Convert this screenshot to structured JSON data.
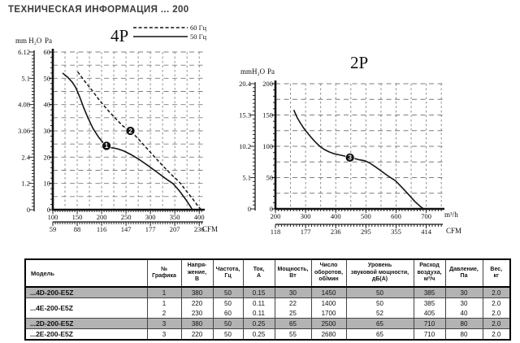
{
  "page": {
    "title": "ТЕХНИЧЕСКАЯ ИНФОРМАЦИЯ ... 200"
  },
  "colors": {
    "accent": "#111111",
    "grid": "#7d7d7d",
    "row_shade": "#b3b3b3"
  },
  "chart_data": [
    {
      "id": "c1",
      "type": "line",
      "title": "4P",
      "y_left_unit": "mm H₂O",
      "y_right_unit": "Pa",
      "cfm_unit": "CFM",
      "flow_unit": "",
      "x_range": [
        100,
        408
      ],
      "y_range": [
        0,
        60
      ],
      "x_ticks": [
        100,
        150,
        200,
        250,
        300,
        350,
        400
      ],
      "y_ticks": [
        0,
        10,
        20,
        30,
        40,
        50,
        60
      ],
      "mm_labels": [
        "6.12",
        "5.1",
        "4.08",
        "3.06",
        "2.4",
        "1.2",
        "0"
      ],
      "cfm_labels": [
        "59",
        "88",
        "116",
        "147",
        "177",
        "207",
        "236"
      ],
      "grid": {
        "x_start": 125,
        "x_end": 400,
        "x_step": 25,
        "y_start": 5,
        "y_end": 60,
        "y_step": 5
      },
      "legend": [
        {
          "label": "60 Гц",
          "style": "dashed"
        },
        {
          "label": "50 Гц",
          "style": "solid"
        }
      ],
      "series": [
        {
          "name": "50 Гц",
          "style": "solid",
          "points": [
            [
              120,
              52
            ],
            [
              130,
              50.5
            ],
            [
              140,
              48.5
            ],
            [
              147,
              46.5
            ],
            [
              155,
              43
            ],
            [
              163,
              39
            ],
            [
              172,
              35
            ],
            [
              182,
              31
            ],
            [
              193,
              27.8
            ],
            [
              203,
              25.5
            ],
            [
              210,
              24.3
            ],
            [
              220,
              23.6
            ],
            [
              232,
              23.2
            ],
            [
              245,
              22.4
            ],
            [
              260,
              21
            ],
            [
              278,
              19
            ],
            [
              295,
              16.8
            ],
            [
              312,
              14.5
            ],
            [
              330,
              12
            ],
            [
              347,
              9.8
            ],
            [
              360,
              7
            ],
            [
              372,
              4
            ],
            [
              381,
              1.5
            ],
            [
              386,
              0
            ]
          ]
        },
        {
          "name": "60 Гц",
          "style": "dashed",
          "points": [
            [
              151,
              52.5
            ],
            [
              165,
              49
            ],
            [
              180,
              45.5
            ],
            [
              196,
              41.5
            ],
            [
              212,
              38
            ],
            [
              228,
              34.8
            ],
            [
              244,
              31.8
            ],
            [
              259,
              30
            ],
            [
              275,
              27
            ],
            [
              292,
              23.5
            ],
            [
              308,
              20.2
            ],
            [
              325,
              16.8
            ],
            [
              342,
              13.5
            ],
            [
              358,
              10.8
            ],
            [
              372,
              7.5
            ],
            [
              385,
              4.5
            ],
            [
              397,
              1.5
            ],
            [
              404,
              0
            ]
          ]
        }
      ],
      "markers": [
        {
          "label": "1",
          "x": 210,
          "y": 24.3
        },
        {
          "label": "2",
          "x": 259,
          "y": 30
        }
      ]
    },
    {
      "id": "c2",
      "type": "line",
      "title": "2P",
      "y_left_unit": "mmH₂O",
      "y_right_unit": "Pa",
      "cfm_unit": "CFM",
      "flow_unit": "m³/h",
      "x_range": [
        200,
        755
      ],
      "y_range": [
        0,
        200
      ],
      "x_ticks": [
        200,
        300,
        400,
        500,
        600,
        700
      ],
      "y_ticks": [
        0,
        50,
        100,
        150,
        200
      ],
      "mm_labels": [
        "20.4",
        "15.3",
        "10.2",
        "5.1",
        "0"
      ],
      "cfm_labels": [
        "118",
        "177",
        "236",
        "295",
        "355",
        "414"
      ],
      "grid": {
        "x_start": 250,
        "x_end": 750,
        "x_step": 50,
        "y_start": 25,
        "y_end": 200,
        "y_step": 25
      },
      "legend": [],
      "series": [
        {
          "name": "3",
          "style": "solid",
          "points": [
            [
              261,
              158
            ],
            [
              272,
              146
            ],
            [
              283,
              137
            ],
            [
              295,
              128
            ],
            [
              307,
              121
            ],
            [
              318,
              114.5
            ],
            [
              332,
              107
            ],
            [
              347,
              100
            ],
            [
              362,
              95
            ],
            [
              378,
              91
            ],
            [
              395,
              88
            ],
            [
              410,
              86.5
            ],
            [
              428,
              84.5
            ],
            [
              447,
              82
            ],
            [
              462,
              80.5
            ],
            [
              478,
              78.5
            ],
            [
              495,
              77
            ],
            [
              510,
              74
            ],
            [
              528,
              68.5
            ],
            [
              545,
              62.5
            ],
            [
              562,
              56.5
            ],
            [
              580,
              50.5
            ],
            [
              598,
              45
            ],
            [
              612,
              38
            ],
            [
              628,
              30
            ],
            [
              645,
              21
            ],
            [
              662,
              12
            ],
            [
              678,
              5
            ],
            [
              691,
              0
            ]
          ]
        }
      ],
      "markers": [
        {
          "label": "3",
          "x": 447,
          "y": 82
        }
      ]
    }
  ],
  "table": {
    "headers": [
      "Модель",
      "№\nГрафика",
      "Напря-\nжение,\nВ",
      "Частота,\nГц",
      "Ток,\nА",
      "Мощность,\nВт",
      "Число\nоборотов,\nоб/мин",
      "Уровень\nзвуковой мощности,\nдБ(А)",
      "Расход\nвоздуха,\nм³/ч",
      "Давление,\nПа",
      "Вес,\nкг"
    ],
    "rows": [
      {
        "model": "...4D-200-E5Z",
        "shade": true,
        "cells": [
          "1",
          "380",
          "50",
          "0.15",
          "30",
          "1450",
          "50",
          "385",
          "30",
          "2.0"
        ]
      },
      {
        "model": "...4E-200-E5Z",
        "shade": false,
        "cells": [
          "1",
          "220",
          "50",
          "0.11",
          "22",
          "1400",
          "50",
          "385",
          "30",
          "2.0"
        ]
      },
      {
        "model": "",
        "shade": false,
        "cells": [
          "2",
          "230",
          "60",
          "0.11",
          "25",
          "1700",
          "52",
          "405",
          "40",
          "2.0"
        ]
      },
      {
        "model": "...2D-200-E5Z",
        "shade": true,
        "cells": [
          "3",
          "380",
          "50",
          "0.25",
          "65",
          "2500",
          "65",
          "710",
          "80",
          "2.0"
        ]
      },
      {
        "model": "...2E-200-E5Z",
        "shade": false,
        "cells": [
          "3",
          "220",
          "50",
          "0.25",
          "55",
          "2680",
          "65",
          "710",
          "80",
          "2.0"
        ]
      }
    ]
  }
}
